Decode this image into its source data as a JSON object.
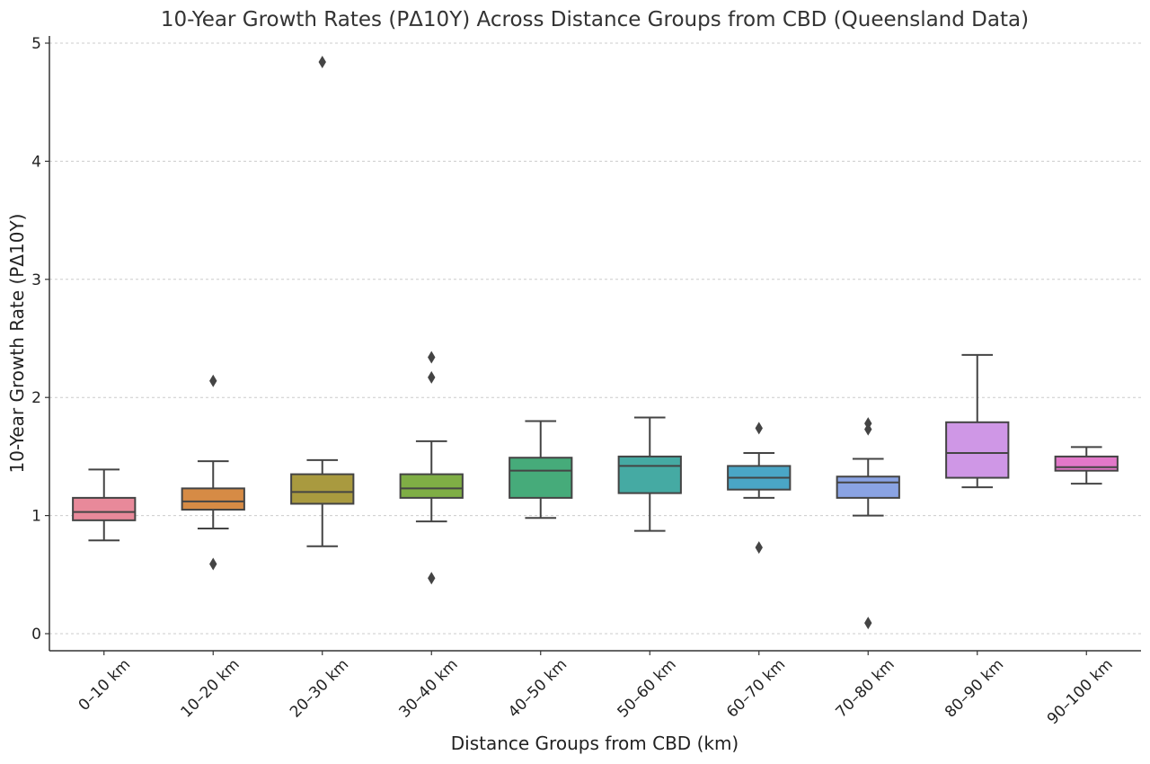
{
  "chart_data": {
    "type": "box",
    "title": "10-Year Growth Rates (PΔ10Y) Across Distance Groups from CBD (Queensland Data)",
    "xlabel": "Distance Groups from CBD (km)",
    "ylabel": "10-Year Growth Rate (PΔ10Y)",
    "ylim": [
      -0.15,
      5.1
    ],
    "yticks": [
      "0",
      "1",
      "2",
      "3",
      "4",
      "5"
    ],
    "grid": "y",
    "categories": [
      "0–10 km",
      "10–20 km",
      "20–30 km",
      "30–40 km",
      "40–50 km",
      "50–60 km",
      "60–70 km",
      "70–80 km",
      "80–90 km",
      "90–100 km"
    ],
    "boxes": [
      {
        "category": "0–10 km",
        "whisker_low": 0.79,
        "q1": 0.96,
        "median": 1.03,
        "q3": 1.15,
        "whisker_high": 1.39,
        "outliers": [],
        "color": "#e8899a"
      },
      {
        "category": "10–20 km",
        "whisker_low": 0.89,
        "q1": 1.05,
        "median": 1.12,
        "q3": 1.23,
        "whisker_high": 1.46,
        "outliers": [
          0.59,
          2.14
        ],
        "color": "#d68b45"
      },
      {
        "category": "20–30 km",
        "whisker_low": 0.74,
        "q1": 1.1,
        "median": 1.2,
        "q3": 1.35,
        "whisker_high": 1.47,
        "outliers": [
          4.84
        ],
        "color": "#a99a3f"
      },
      {
        "category": "30–40 km",
        "whisker_low": 0.95,
        "q1": 1.15,
        "median": 1.23,
        "q3": 1.35,
        "whisker_high": 1.63,
        "outliers": [
          0.47,
          2.17,
          2.34
        ],
        "color": "#7fae45"
      },
      {
        "category": "40–50 km",
        "whisker_low": 0.98,
        "q1": 1.15,
        "median": 1.38,
        "q3": 1.49,
        "whisker_high": 1.8,
        "outliers": [],
        "color": "#46ab7a"
      },
      {
        "category": "50–60 km",
        "whisker_low": 0.87,
        "q1": 1.19,
        "median": 1.42,
        "q3": 1.5,
        "whisker_high": 1.83,
        "outliers": [],
        "color": "#45aaa3"
      },
      {
        "category": "60–70 km",
        "whisker_low": 1.15,
        "q1": 1.22,
        "median": 1.32,
        "q3": 1.42,
        "whisker_high": 1.53,
        "outliers": [
          0.73,
          1.74
        ],
        "color": "#4aa6c6"
      },
      {
        "category": "70–80 km",
        "whisker_low": 1.0,
        "q1": 1.15,
        "median": 1.28,
        "q3": 1.33,
        "whisker_high": 1.48,
        "outliers": [
          0.09,
          1.73,
          1.78
        ],
        "color": "#8aa3e3"
      },
      {
        "category": "80–90 km",
        "whisker_low": 1.24,
        "q1": 1.32,
        "median": 1.53,
        "q3": 1.79,
        "whisker_high": 2.36,
        "outliers": [],
        "color": "#cf97e6"
      },
      {
        "category": "90–100 km",
        "whisker_low": 1.27,
        "q1": 1.38,
        "median": 1.41,
        "q3": 1.5,
        "whisker_high": 1.58,
        "outliers": [],
        "color": "#e278c9"
      }
    ]
  }
}
